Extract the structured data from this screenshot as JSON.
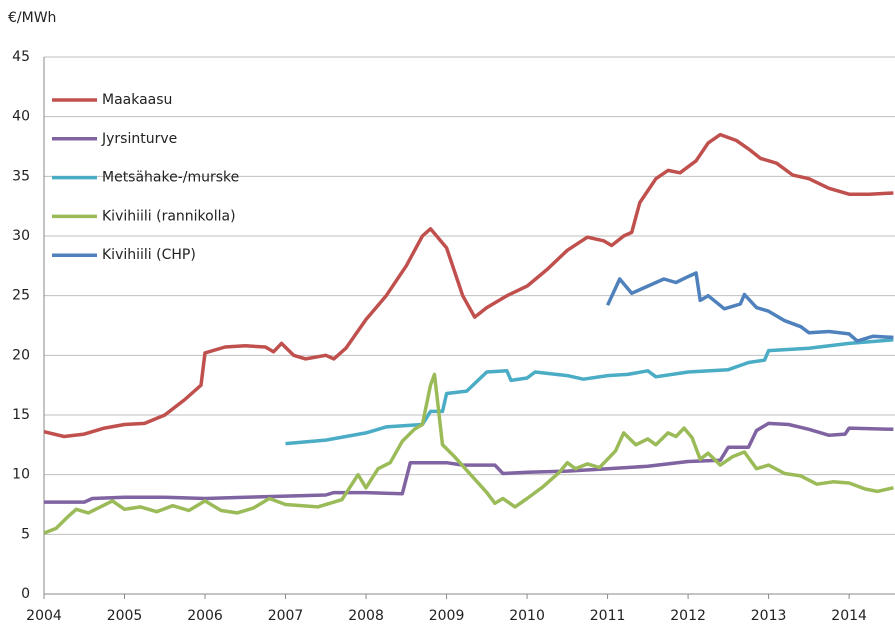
{
  "chart_data": {
    "type": "line",
    "y_label": "€/MWh",
    "xlim": [
      2004,
      2014.57
    ],
    "xticks": [
      2004,
      2005,
      2006,
      2007,
      2008,
      2009,
      2010,
      2011,
      2012,
      2013,
      2014
    ],
    "ylim": [
      0,
      45
    ],
    "yticks": [
      0,
      5,
      10,
      15,
      20,
      25,
      30,
      35,
      40,
      45
    ],
    "grid": true,
    "legend": "upper left",
    "series": [
      {
        "name": "Maakaasu",
        "color": "#c0504d",
        "x": [
          2004,
          2004.25,
          2004.5,
          2004.75,
          2005,
          2005.25,
          2005.5,
          2005.75,
          2005.95,
          2006.0,
          2006.25,
          2006.5,
          2006.75,
          2006.85,
          2006.95,
          2007.1,
          2007.25,
          2007.5,
          2007.6,
          2007.75,
          2008,
          2008.25,
          2008.5,
          2008.7,
          2008.8,
          2009,
          2009.2,
          2009.35,
          2009.5,
          2009.75,
          2010,
          2010.25,
          2010.5,
          2010.75,
          2010.95,
          2011.05,
          2011.2,
          2011.3,
          2011.4,
          2011.6,
          2011.75,
          2011.9,
          2012.1,
          2012.25,
          2012.4,
          2012.6,
          2012.75,
          2012.9,
          2013.1,
          2013.3,
          2013.5,
          2013.75,
          2014,
          2014.25,
          2014.55
        ],
        "values": [
          13.6,
          13.2,
          13.4,
          13.9,
          14.2,
          14.3,
          15,
          16.3,
          17.5,
          20.2,
          20.7,
          20.8,
          20.7,
          20.3,
          21,
          20,
          19.7,
          20,
          19.7,
          20.6,
          23,
          25,
          27.5,
          30,
          30.6,
          29,
          25,
          23.2,
          24,
          25,
          25.8,
          27.2,
          28.8,
          29.9,
          29.6,
          29.2,
          30,
          30.3,
          32.8,
          34.8,
          35.5,
          35.3,
          36.3,
          37.8,
          38.5,
          38.0,
          37.3,
          36.5,
          36.1,
          35.1,
          34.8,
          34,
          33.5,
          33.5,
          33.6
        ]
      },
      {
        "name": "Jyrsinturve",
        "color": "#8064a2",
        "x": [
          2004,
          2004.5,
          2004.6,
          2005,
          2005.5,
          2006,
          2006.5,
          2007,
          2007.5,
          2007.6,
          2008,
          2008.45,
          2008.55,
          2009,
          2009.2,
          2009.6,
          2009.7,
          2010,
          2010.5,
          2011,
          2011.5,
          2012,
          2012.4,
          2012.5,
          2012.75,
          2012.85,
          2013,
          2013.25,
          2013.5,
          2013.75,
          2013.95,
          2014,
          2014.55
        ],
        "values": [
          7.7,
          7.7,
          8.0,
          8.1,
          8.1,
          8.0,
          8.1,
          8.2,
          8.3,
          8.5,
          8.5,
          8.4,
          11,
          11,
          10.8,
          10.8,
          10.1,
          10.2,
          10.3,
          10.5,
          10.7,
          11.1,
          11.2,
          12.3,
          12.3,
          13.7,
          14.3,
          14.2,
          13.8,
          13.3,
          13.4,
          13.9,
          13.8
        ]
      },
      {
        "name": "Metsähake-/murske",
        "color": "#4bacc6",
        "x": [
          2007,
          2007.5,
          2007.75,
          2008,
          2008.25,
          2008.7,
          2008.8,
          2008.95,
          2009,
          2009.25,
          2009.5,
          2009.75,
          2009.8,
          2010,
          2010.1,
          2010.5,
          2010.7,
          2011,
          2011.25,
          2011.5,
          2011.6,
          2012,
          2012.5,
          2012.75,
          2012.95,
          2013.0,
          2013.5,
          2014,
          2014.55
        ],
        "values": [
          12.6,
          12.9,
          13.2,
          13.5,
          14,
          14.2,
          15.3,
          15.3,
          16.8,
          17,
          18.6,
          18.7,
          17.9,
          18.1,
          18.6,
          18.3,
          18.0,
          18.3,
          18.4,
          18.7,
          18.2,
          18.6,
          18.8,
          19.4,
          19.6,
          20.4,
          20.6,
          21.0,
          21.3
        ]
      },
      {
        "name": "Kivihiili (rannikolla)",
        "color": "#9bbb59",
        "x": [
          2004,
          2004.15,
          2004.3,
          2004.4,
          2004.55,
          2004.7,
          2004.85,
          2005,
          2005.2,
          2005.4,
          2005.6,
          2005.8,
          2006.0,
          2006.2,
          2006.4,
          2006.6,
          2006.8,
          2007,
          2007.4,
          2007.7,
          2007.9,
          2008,
          2008.15,
          2008.3,
          2008.45,
          2008.6,
          2008.7,
          2008.8,
          2008.85,
          2008.95,
          2009.1,
          2009.3,
          2009.5,
          2009.6,
          2009.7,
          2009.85,
          2010,
          2010.2,
          2010.4,
          2010.5,
          2010.6,
          2010.75,
          2010.9,
          2011,
          2011.1,
          2011.2,
          2011.35,
          2011.5,
          2011.6,
          2011.75,
          2011.85,
          2011.95,
          2012.05,
          2012.15,
          2012.25,
          2012.4,
          2012.55,
          2012.7,
          2012.85,
          2013,
          2013.2,
          2013.4,
          2013.6,
          2013.8,
          2014,
          2014.2,
          2014.35,
          2014.55
        ],
        "values": [
          5.1,
          5.5,
          6.5,
          7.1,
          6.8,
          7.3,
          7.8,
          7.1,
          7.3,
          6.9,
          7.4,
          7.0,
          7.8,
          7.0,
          6.8,
          7.2,
          8,
          7.5,
          7.3,
          7.9,
          10.0,
          8.9,
          10.5,
          11,
          12.8,
          13.8,
          14.2,
          17.5,
          18.4,
          12.5,
          11.5,
          10,
          8.5,
          7.6,
          8.0,
          7.3,
          8.0,
          9,
          10.2,
          11,
          10.5,
          10.9,
          10.6,
          11.3,
          12,
          13.5,
          12.5,
          13,
          12.5,
          13.5,
          13.2,
          13.9,
          13.1,
          11.3,
          11.8,
          10.8,
          11.5,
          11.9,
          10.5,
          10.8,
          10.1,
          9.9,
          9.2,
          9.4,
          9.3,
          8.8,
          8.6,
          8.9
        ]
      },
      {
        "name": "Kivihiili (CHP)",
        "color": "#4f81bd",
        "x": [
          2011,
          2011.15,
          2011.3,
          2011.5,
          2011.7,
          2011.85,
          2012,
          2012.1,
          2012.15,
          2012.25,
          2012.45,
          2012.65,
          2012.7,
          2012.85,
          2013,
          2013.2,
          2013.4,
          2013.5,
          2013.75,
          2014,
          2014.1,
          2014.3,
          2014.55
        ],
        "values": [
          24.2,
          26.4,
          25.2,
          25.8,
          26.4,
          26.1,
          26.6,
          26.9,
          24.6,
          25.0,
          23.9,
          24.3,
          25.1,
          24.0,
          23.7,
          22.9,
          22.4,
          21.9,
          22.0,
          21.8,
          21.2,
          21.6,
          21.5
        ]
      }
    ]
  }
}
